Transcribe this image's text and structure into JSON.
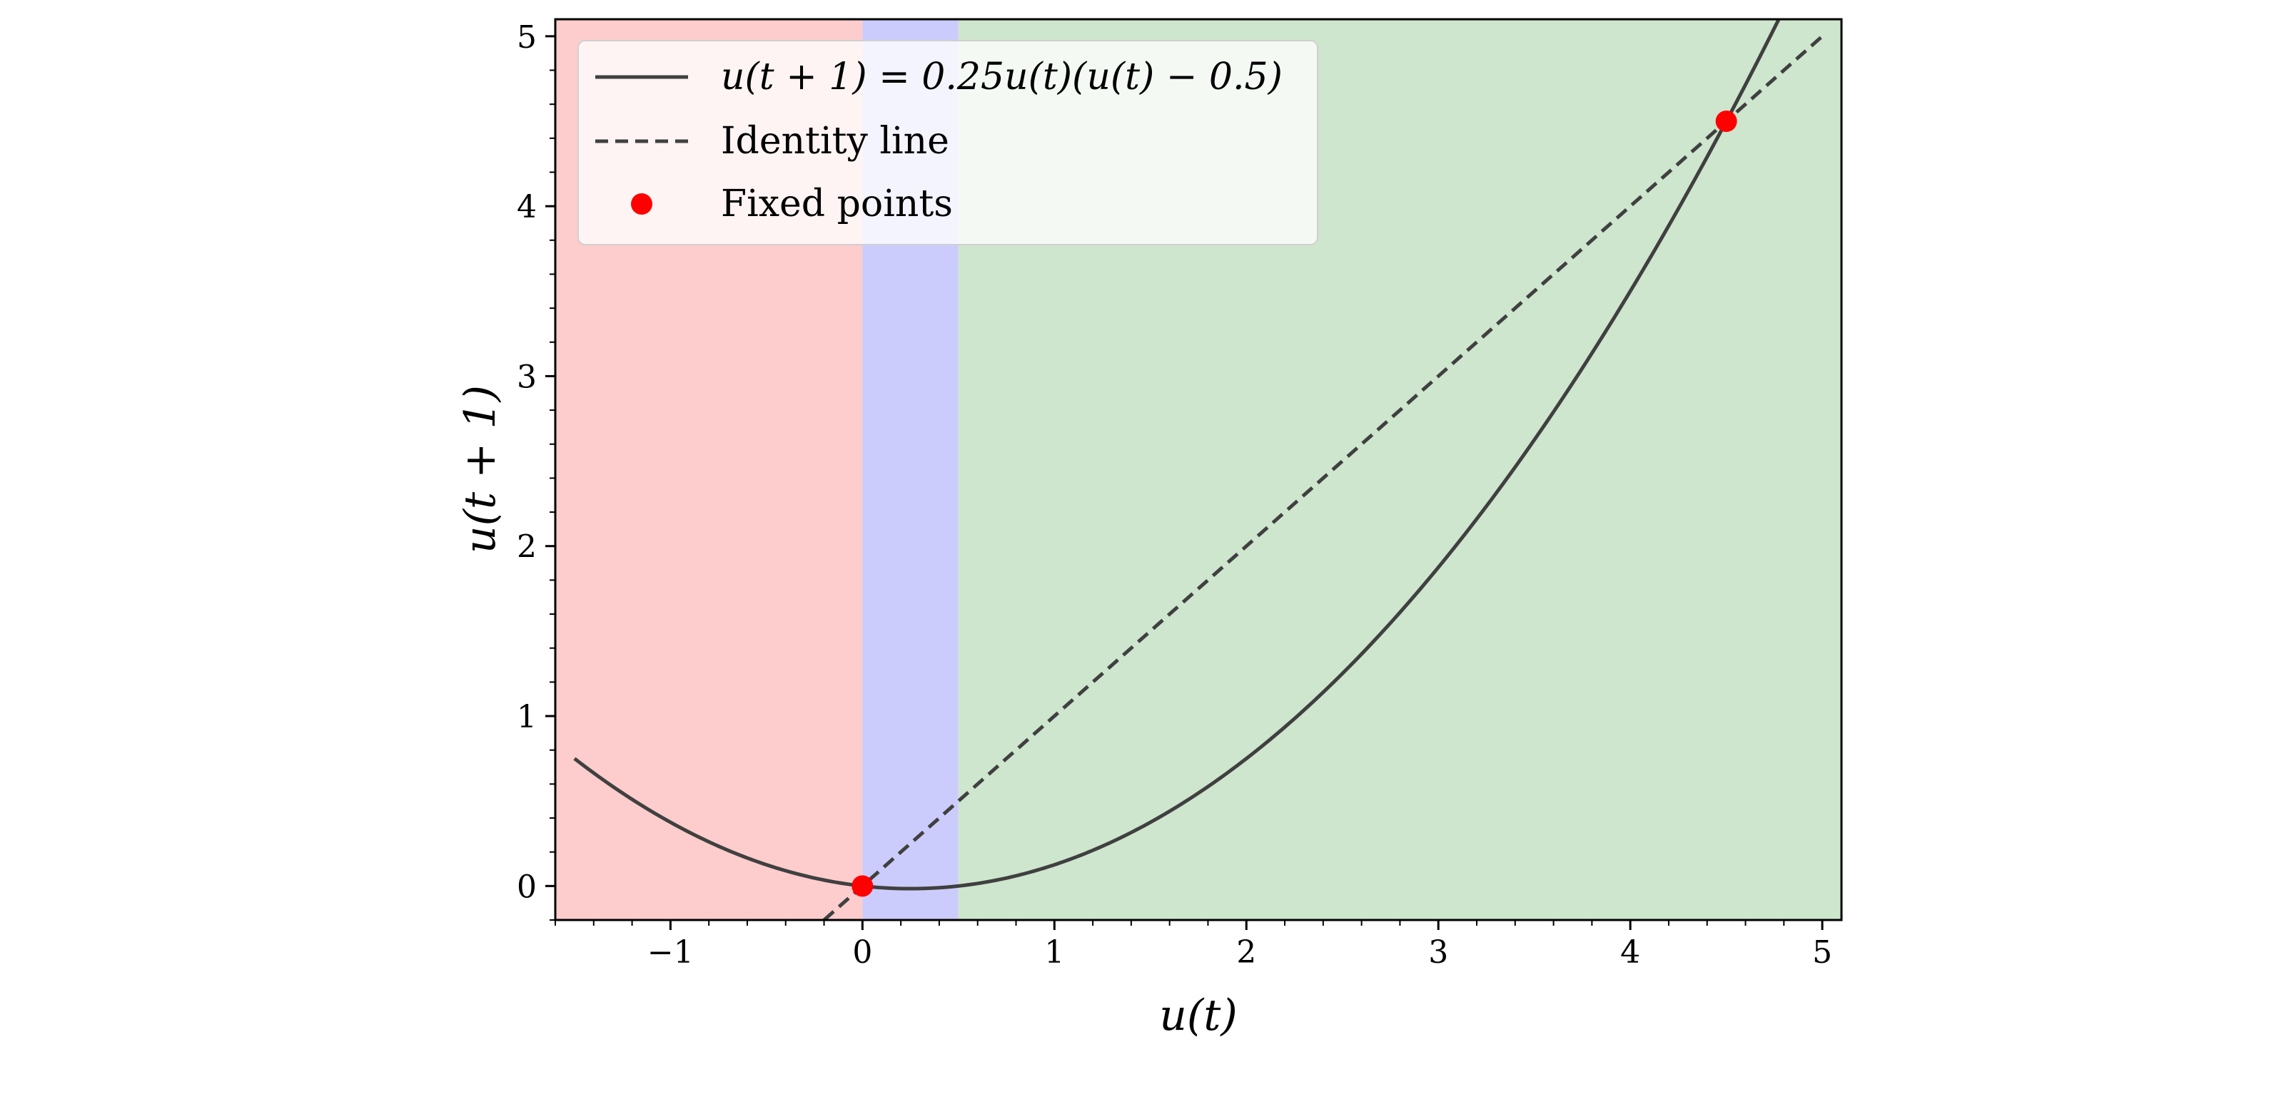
{
  "chart_data": {
    "type": "line",
    "xlabel": "u(t)",
    "ylabel": "u(t + 1)",
    "xlim": [
      -1.6,
      5.1
    ],
    "ylim": [
      -0.2,
      5.1
    ],
    "xticks": [
      -1,
      0,
      1,
      2,
      3,
      4,
      5
    ],
    "xtick_labels": [
      "−1",
      "0",
      "1",
      "2",
      "3",
      "4",
      "5"
    ],
    "yticks": [
      0,
      1,
      2,
      3,
      4,
      5
    ],
    "ytick_labels": [
      "0",
      "1",
      "2",
      "3",
      "4",
      "5"
    ],
    "minor_ticks": true,
    "grid": false,
    "regions": [
      {
        "x_from": -1.6,
        "x_to": 0,
        "color": "#fdcccc"
      },
      {
        "x_from": 0,
        "x_to": 0.5,
        "color": "#ccccfc"
      },
      {
        "x_from": 0.5,
        "x_to": 5.1,
        "color": "#cee5ce"
      }
    ],
    "series": [
      {
        "name": "u(t + 1) = 0.25u(t)(u(t) − 0.5)",
        "style": "solid",
        "color": "#404040",
        "function": {
          "a": 0.25,
          "c": 0.5
        },
        "x_range": [
          -1.5,
          4.78
        ]
      },
      {
        "name": "Identity line",
        "style": "dashed",
        "color": "#404040",
        "x_range": [
          -0.2,
          5.0
        ]
      },
      {
        "name": "Fixed points",
        "style": "marker",
        "color": "#ff0000",
        "points": [
          [
            0,
            0
          ],
          [
            4.5,
            4.5
          ]
        ]
      }
    ],
    "legend_position": "upper-left"
  }
}
